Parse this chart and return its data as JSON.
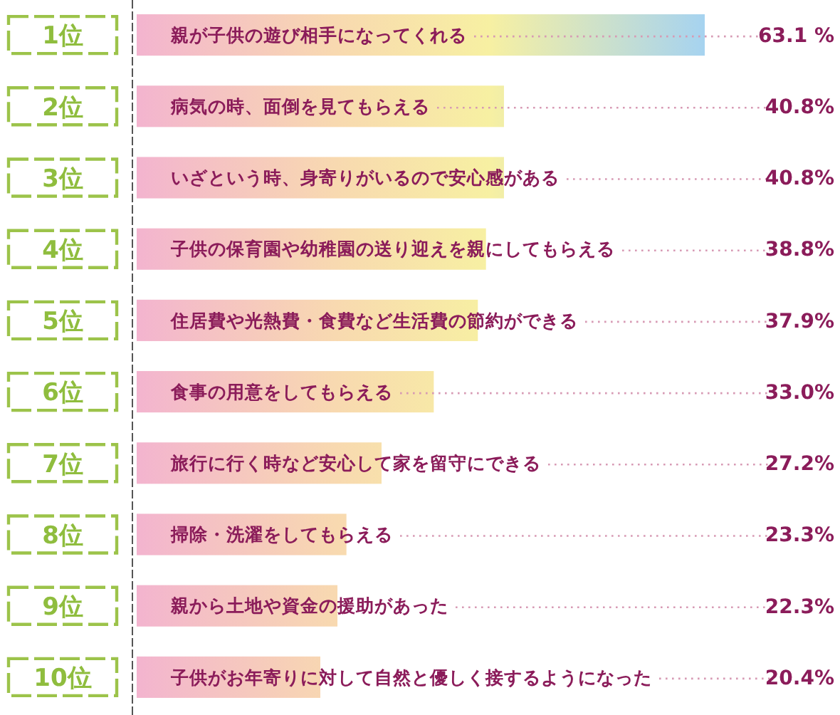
{
  "chart_data": {
    "type": "bar",
    "orientation": "horizontal",
    "categories": [
      "親が子供の遊び相手になってくれる",
      "病気の時、面倒を見てもらえる",
      "いざという時、身寄りがいるので安心感がある",
      "子供の保育園や幼稚園の送り迎えを親にしてもらえる",
      "住居費や光熱費・食費など生活費の節約ができる",
      "食事の用意をしてもらえる",
      "旅行に行く時など安心して家を留守にできる",
      "掃除・洗濯をしてもらえる",
      "親から土地や資金の援助があった",
      "子供がお年寄りに対して自然と優しく接するようになった"
    ],
    "values": [
      63.1,
      40.8,
      40.8,
      38.8,
      37.9,
      33.0,
      27.2,
      23.3,
      22.3,
      20.4
    ],
    "value_labels": [
      "63.1 %",
      "40.8%",
      "40.8%",
      "38.8%",
      "37.9%",
      "33.0%",
      "27.2%",
      "23.3%",
      "22.3%",
      "20.4%"
    ],
    "annotations": [
      "1位",
      "2位",
      "3位",
      "4位",
      "5位",
      "6位",
      "7位",
      "8位",
      "9位",
      "10位"
    ],
    "color": "#f3b4cf"
  }
}
